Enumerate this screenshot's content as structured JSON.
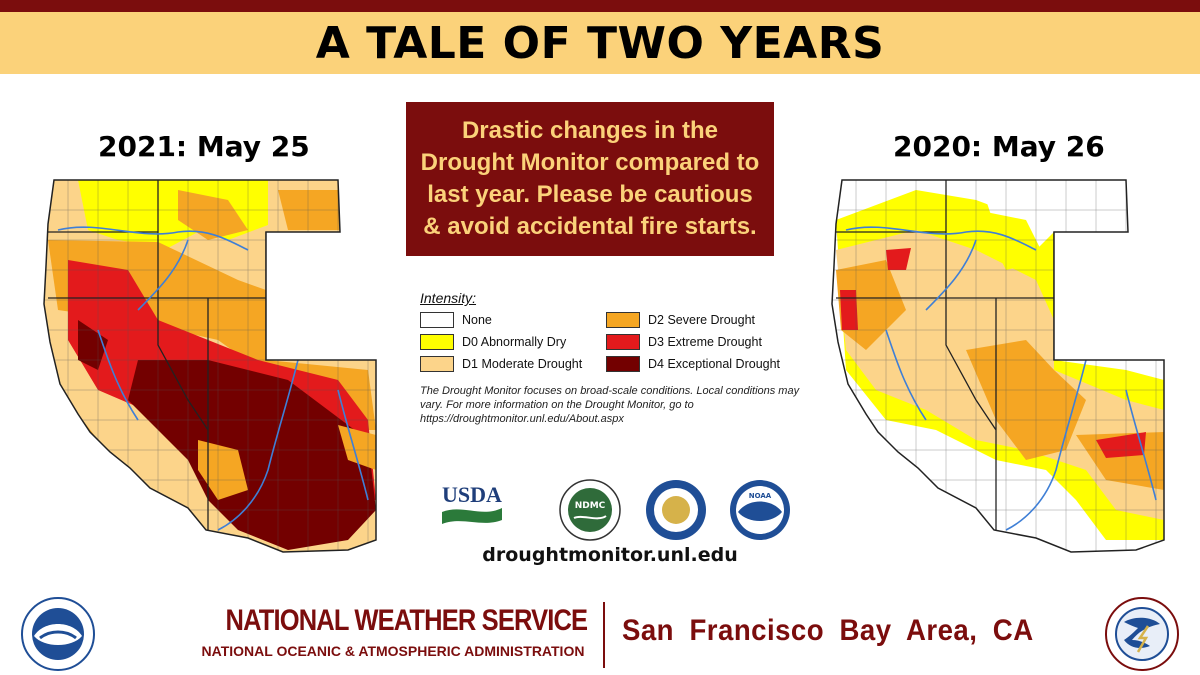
{
  "title": "A TALE OF TWO YEARS",
  "map_left": {
    "label": "2021: May 25"
  },
  "map_right": {
    "label": "2020: May 26"
  },
  "notice": "Drastic changes in the Drought Monitor compared to last year. Please be cautious & avoid accidental fire starts.",
  "legend": {
    "title": "Intensity:",
    "items": [
      {
        "label": "None",
        "color": "#ffffff"
      },
      {
        "label": "D2 Severe Drought",
        "color": "#f5a623"
      },
      {
        "label": "D0 Abnormally Dry",
        "color": "#ffff00"
      },
      {
        "label": "D3 Extreme Drought",
        "color": "#e31a1c"
      },
      {
        "label": "D1 Moderate Drought",
        "color": "#fcd48a"
      },
      {
        "label": "D4 Exceptional Drought",
        "color": "#730000"
      }
    ],
    "note": "The Drought Monitor focuses on broad-scale conditions. Local conditions may vary. For more information on the Drought Monitor, go to https://droughtmonitor.unl.edu/About.aspx"
  },
  "logos": {
    "usda": "USDA",
    "ndmc": "NDMC",
    "noaa": "NOAA"
  },
  "url": "droughtmonitor.unl.edu",
  "footer": {
    "agency": "NATIONAL WEATHER SERVICE",
    "parent": "NATIONAL OCEANIC & ATMOSPHERIC ADMINISTRATION",
    "office": "San Francisco Bay Area, CA"
  },
  "colors": {
    "brand_maroon": "#7b0d0d",
    "title_band": "#fbd27a",
    "river": "#3f7fd6"
  }
}
